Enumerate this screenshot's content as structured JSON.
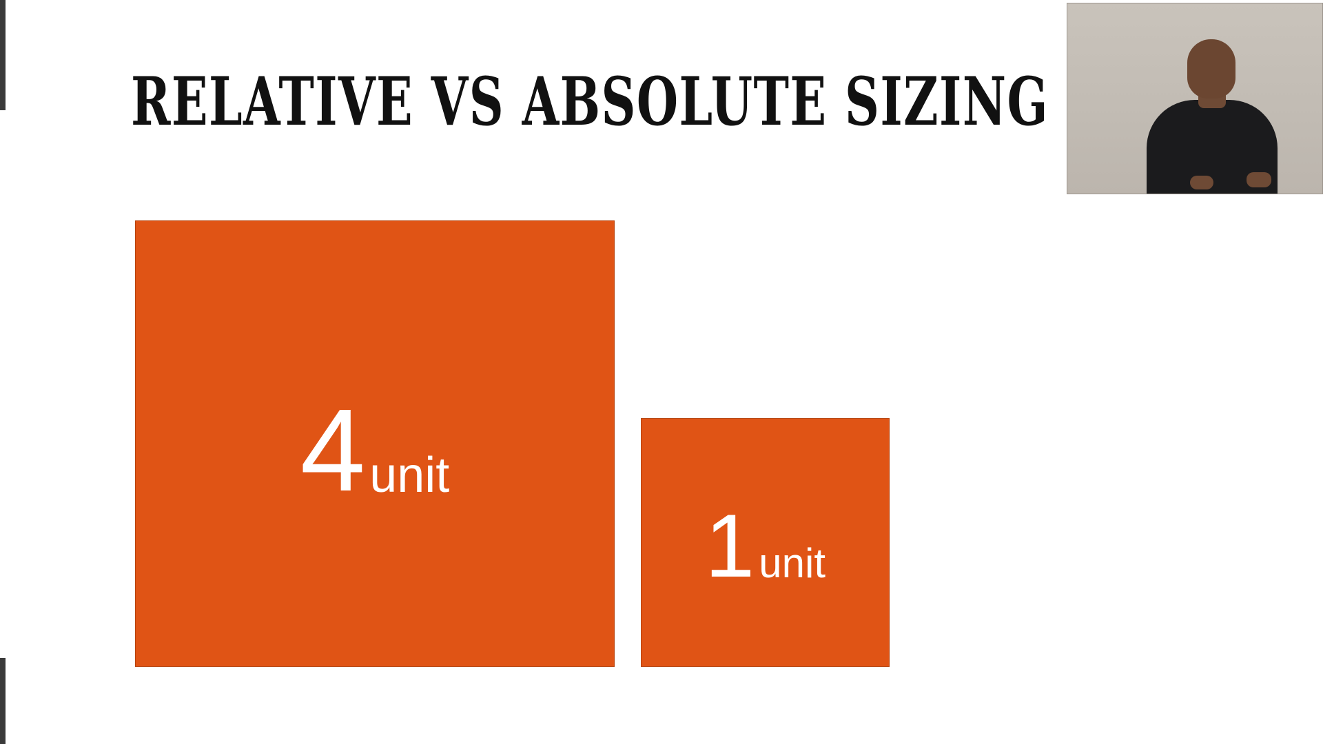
{
  "slide": {
    "title": "RELATIVE VS ABSOLUTE SIZING",
    "accent_color": "#e05415",
    "boxes": [
      {
        "number": "4",
        "unit": "unit",
        "relative_size": 4
      },
      {
        "number": "1",
        "unit": "unit",
        "relative_size": 1
      }
    ]
  },
  "presenter_video": {
    "icon": "presenter-webcam"
  }
}
